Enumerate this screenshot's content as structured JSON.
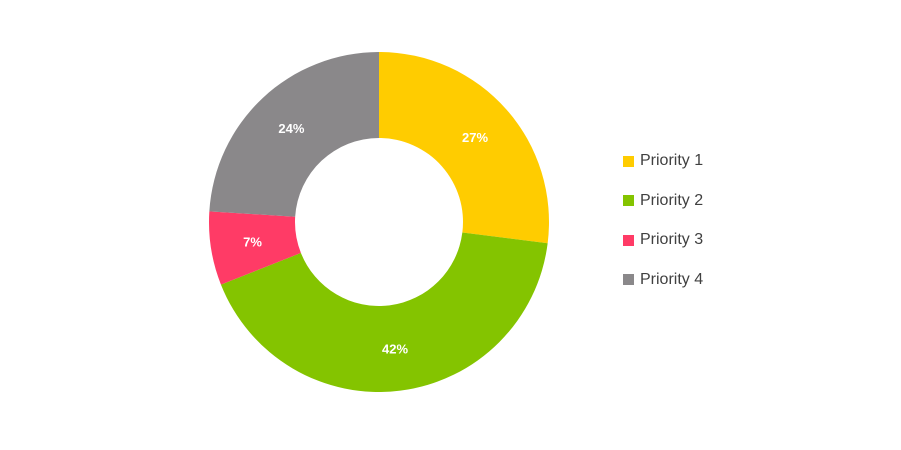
{
  "chart_data": {
    "type": "pie",
    "donut": true,
    "title": "",
    "legend_position": "right",
    "slices": [
      {
        "name": "Priority 1",
        "value": 27,
        "label": "27%",
        "color": "#FFCC00"
      },
      {
        "name": "Priority 2",
        "value": 42,
        "label": "42%",
        "color": "#84C400"
      },
      {
        "name": "Priority 3",
        "value": 7,
        "label": "7%",
        "color": "#FF3B66"
      },
      {
        "name": "Priority 4",
        "value": 24,
        "label": "24%",
        "color": "#8A888A"
      }
    ]
  }
}
